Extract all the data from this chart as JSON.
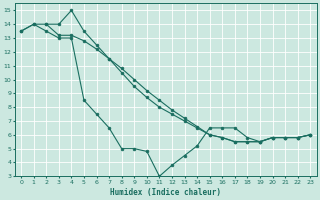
{
  "xlabel": "Humidex (Indice chaleur)",
  "bg_color": "#cce8e0",
  "grid_color": "#ffffff",
  "line_color": "#1a6e60",
  "xlim": [
    -0.5,
    23.5
  ],
  "ylim": [
    3,
    15.5
  ],
  "xticks": [
    0,
    1,
    2,
    3,
    4,
    5,
    6,
    7,
    8,
    9,
    10,
    11,
    12,
    13,
    14,
    15,
    16,
    17,
    18,
    19,
    20,
    21,
    22,
    23
  ],
  "yticks": [
    3,
    4,
    5,
    6,
    7,
    8,
    9,
    10,
    11,
    12,
    13,
    14,
    15
  ],
  "curve1_x": [
    0,
    1,
    2,
    3,
    4,
    5,
    6,
    7,
    8,
    9,
    10,
    11,
    12,
    13,
    14,
    15,
    16,
    17,
    18,
    19,
    20,
    21,
    22,
    23
  ],
  "curve1_y": [
    13.5,
    14.0,
    13.5,
    13.0,
    13.0,
    8.5,
    7.5,
    6.5,
    5.0,
    5.0,
    4.8,
    3.0,
    3.8,
    4.5,
    5.2,
    6.5,
    6.5,
    6.5,
    5.8,
    5.5,
    5.8,
    5.8,
    5.8,
    6.0
  ],
  "curve2_x": [
    0,
    1,
    2,
    3,
    4,
    5,
    6,
    7,
    8,
    9,
    10,
    11,
    12,
    13,
    14,
    15,
    16,
    17,
    18,
    19,
    20,
    21,
    22,
    23
  ],
  "curve2_y": [
    13.5,
    14.0,
    14.0,
    14.0,
    15.0,
    13.5,
    12.5,
    11.5,
    10.5,
    9.5,
    8.7,
    8.0,
    7.5,
    7.0,
    6.5,
    6.0,
    5.8,
    5.5,
    5.5,
    5.5,
    5.8,
    5.8,
    5.8,
    6.0
  ],
  "curve3_x": [
    2,
    3,
    4,
    5,
    6,
    7,
    8,
    9,
    10,
    11,
    12,
    13,
    14,
    15,
    16,
    17,
    18,
    19,
    20,
    21,
    22,
    23
  ],
  "curve3_y": [
    14.0,
    13.2,
    13.2,
    12.8,
    12.2,
    11.5,
    10.8,
    10.0,
    9.2,
    8.5,
    7.8,
    7.2,
    6.6,
    6.0,
    5.8,
    5.5,
    5.5,
    5.5,
    5.8,
    5.8,
    5.8,
    6.0
  ]
}
